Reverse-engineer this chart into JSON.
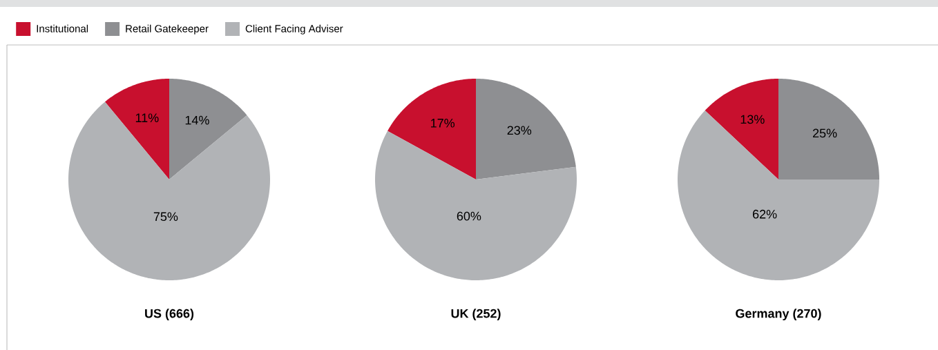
{
  "chart_data": [
    {
      "type": "pie",
      "title": "US (666)",
      "categories": [
        "Institutional",
        "Retail Gatekeeper",
        "Client Facing Adviser"
      ],
      "values": [
        11,
        14,
        75
      ],
      "value_labels": [
        "11%",
        "14%",
        "75%"
      ],
      "colors": [
        "#c8102e",
        "#8e8f92",
        "#b1b3b6"
      ],
      "legend": "top"
    },
    {
      "type": "pie",
      "title": "UK (252)",
      "categories": [
        null,
        null,
        null
      ],
      "values": [
        17,
        23,
        60
      ],
      "value_labels": [
        "17%",
        "23%",
        "60%"
      ],
      "colors": [
        "#c8102e",
        "#8e8f92",
        "#b1b3b6"
      ]
    },
    {
      "type": "pie",
      "title": "Germany (270)",
      "categories": [
        null,
        null,
        null
      ],
      "values": [
        13,
        25,
        62
      ],
      "value_labels": [
        "13%",
        "25%",
        "62%"
      ],
      "colors": [
        "#c8102e",
        "#8e8f92",
        "#b1b3b6"
      ]
    }
  ]
}
